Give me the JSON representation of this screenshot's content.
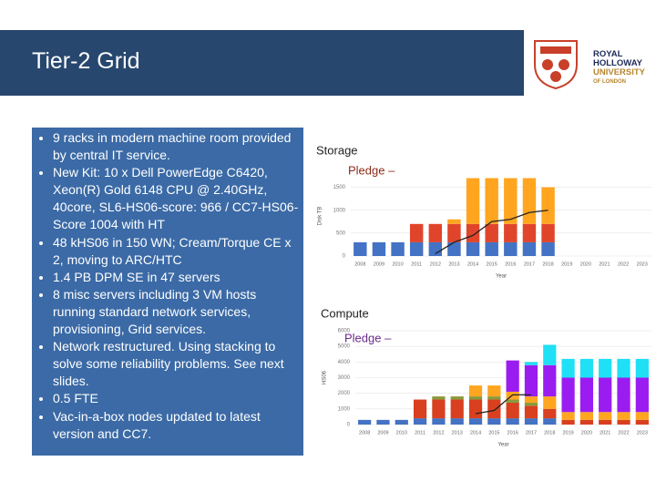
{
  "header": {
    "title": "Tier-2 Grid",
    "logo": [
      "ROYAL",
      "HOLLOWAY",
      "UNIVERSITY",
      "OF LONDON"
    ]
  },
  "bullets": [
    "9 racks in modern machine room provided by central IT service.",
    "New Kit: 10 x Dell PowerEdge C6420, Xeon(R) Gold 6148 CPU @ 2.40GHz, 40core,  SL6-HS06-score: 966 / CC7-HS06-Score 1004 with HT",
    "48 kHS06 in 150 WN; Cream/Torque CE x 2, moving to ARC/HTC",
    "1.4 PB DPM SE in 47 servers",
    "8 misc servers including 3 VM hosts running standard network services, provisioning, Grid services.",
    "Network restructured. Using stacking to solve some reliability problems. See next slides.",
    "0.5 FTE",
    "Vac-in-a-box nodes updated to latest version and CC7."
  ],
  "chart_data": [
    {
      "type": "bar",
      "stacked": true,
      "title": "Storage",
      "annotation": "Pledge –",
      "ylabel": "Disk TB",
      "xlabel": "Year",
      "categories": [
        "2008",
        "2009",
        "2010",
        "2011",
        "2012",
        "2013",
        "2014",
        "2015",
        "2016",
        "2017",
        "2018",
        "2019",
        "2020",
        "2021",
        "2022",
        "2023"
      ],
      "ylim": [
        0,
        1750
      ],
      "yticks": [
        0,
        500,
        1000,
        1500
      ],
      "series": [
        {
          "color": "#4472c4",
          "values": [
            300,
            300,
            300,
            300,
            300,
            300,
            300,
            300,
            300,
            300,
            300,
            null,
            null,
            null,
            null,
            null
          ]
        },
        {
          "color": "#e0452b",
          "values": [
            null,
            null,
            null,
            400,
            400,
            400,
            400,
            400,
            400,
            400,
            400,
            null,
            null,
            null,
            null,
            null
          ]
        },
        {
          "color": "#ffa51f",
          "values": [
            null,
            null,
            null,
            null,
            null,
            100,
            1000,
            1000,
            1000,
            1000,
            800,
            null,
            null,
            null,
            null,
            null
          ]
        },
        {
          "type": "line",
          "color": "#222222",
          "values": [
            null,
            null,
            null,
            null,
            50,
            300,
            450,
            750,
            800,
            950,
            1000,
            null,
            null,
            null,
            null,
            null
          ]
        }
      ]
    },
    {
      "type": "bar",
      "stacked": true,
      "title": "Compute",
      "annotation": "Pledge –",
      "ylabel": "HS06",
      "xlabel": "Year",
      "categories": [
        "2008",
        "2009",
        "2010",
        "2011",
        "2012",
        "2013",
        "2014",
        "2015",
        "2016",
        "2017",
        "2018",
        "2019",
        "2020",
        "2021",
        "2022",
        "2023"
      ],
      "ylim": [
        0,
        6000
      ],
      "yticks": [
        0,
        1000,
        2000,
        3000,
        4000,
        5000,
        6000
      ],
      "series": [
        {
          "color": "#4472c4",
          "values": [
            300,
            300,
            300,
            400,
            400,
            400,
            400,
            400,
            400,
            400,
            400,
            null,
            null,
            null,
            null,
            null
          ]
        },
        {
          "color": "#d9401f",
          "values": [
            null,
            null,
            null,
            1200,
            1200,
            1200,
            1200,
            1200,
            1000,
            800,
            600,
            300,
            300,
            300,
            300,
            300
          ]
        },
        {
          "color": "#8a9a3a",
          "values": [
            null,
            null,
            null,
            null,
            200,
            200,
            200,
            200,
            200,
            200,
            null,
            null,
            null,
            null,
            null,
            null
          ]
        },
        {
          "color": "#ffa51f",
          "values": [
            null,
            null,
            null,
            null,
            null,
            null,
            700,
            700,
            500,
            400,
            800,
            500,
            500,
            500,
            500,
            500
          ]
        },
        {
          "color": "#9b1cf0",
          "values": [
            null,
            null,
            null,
            null,
            null,
            null,
            null,
            null,
            2000,
            2000,
            2000,
            2200,
            2200,
            2200,
            2200,
            2200
          ]
        },
        {
          "color": "#1fe0f5",
          "values": [
            null,
            null,
            null,
            null,
            null,
            null,
            null,
            null,
            null,
            200,
            1300,
            1200,
            1200,
            1200,
            1200,
            1200
          ]
        },
        {
          "type": "line",
          "color": "#222222",
          "values": [
            null,
            null,
            null,
            null,
            null,
            null,
            700,
            900,
            1900,
            1900,
            null,
            null,
            null,
            null,
            null,
            null
          ]
        }
      ]
    }
  ]
}
